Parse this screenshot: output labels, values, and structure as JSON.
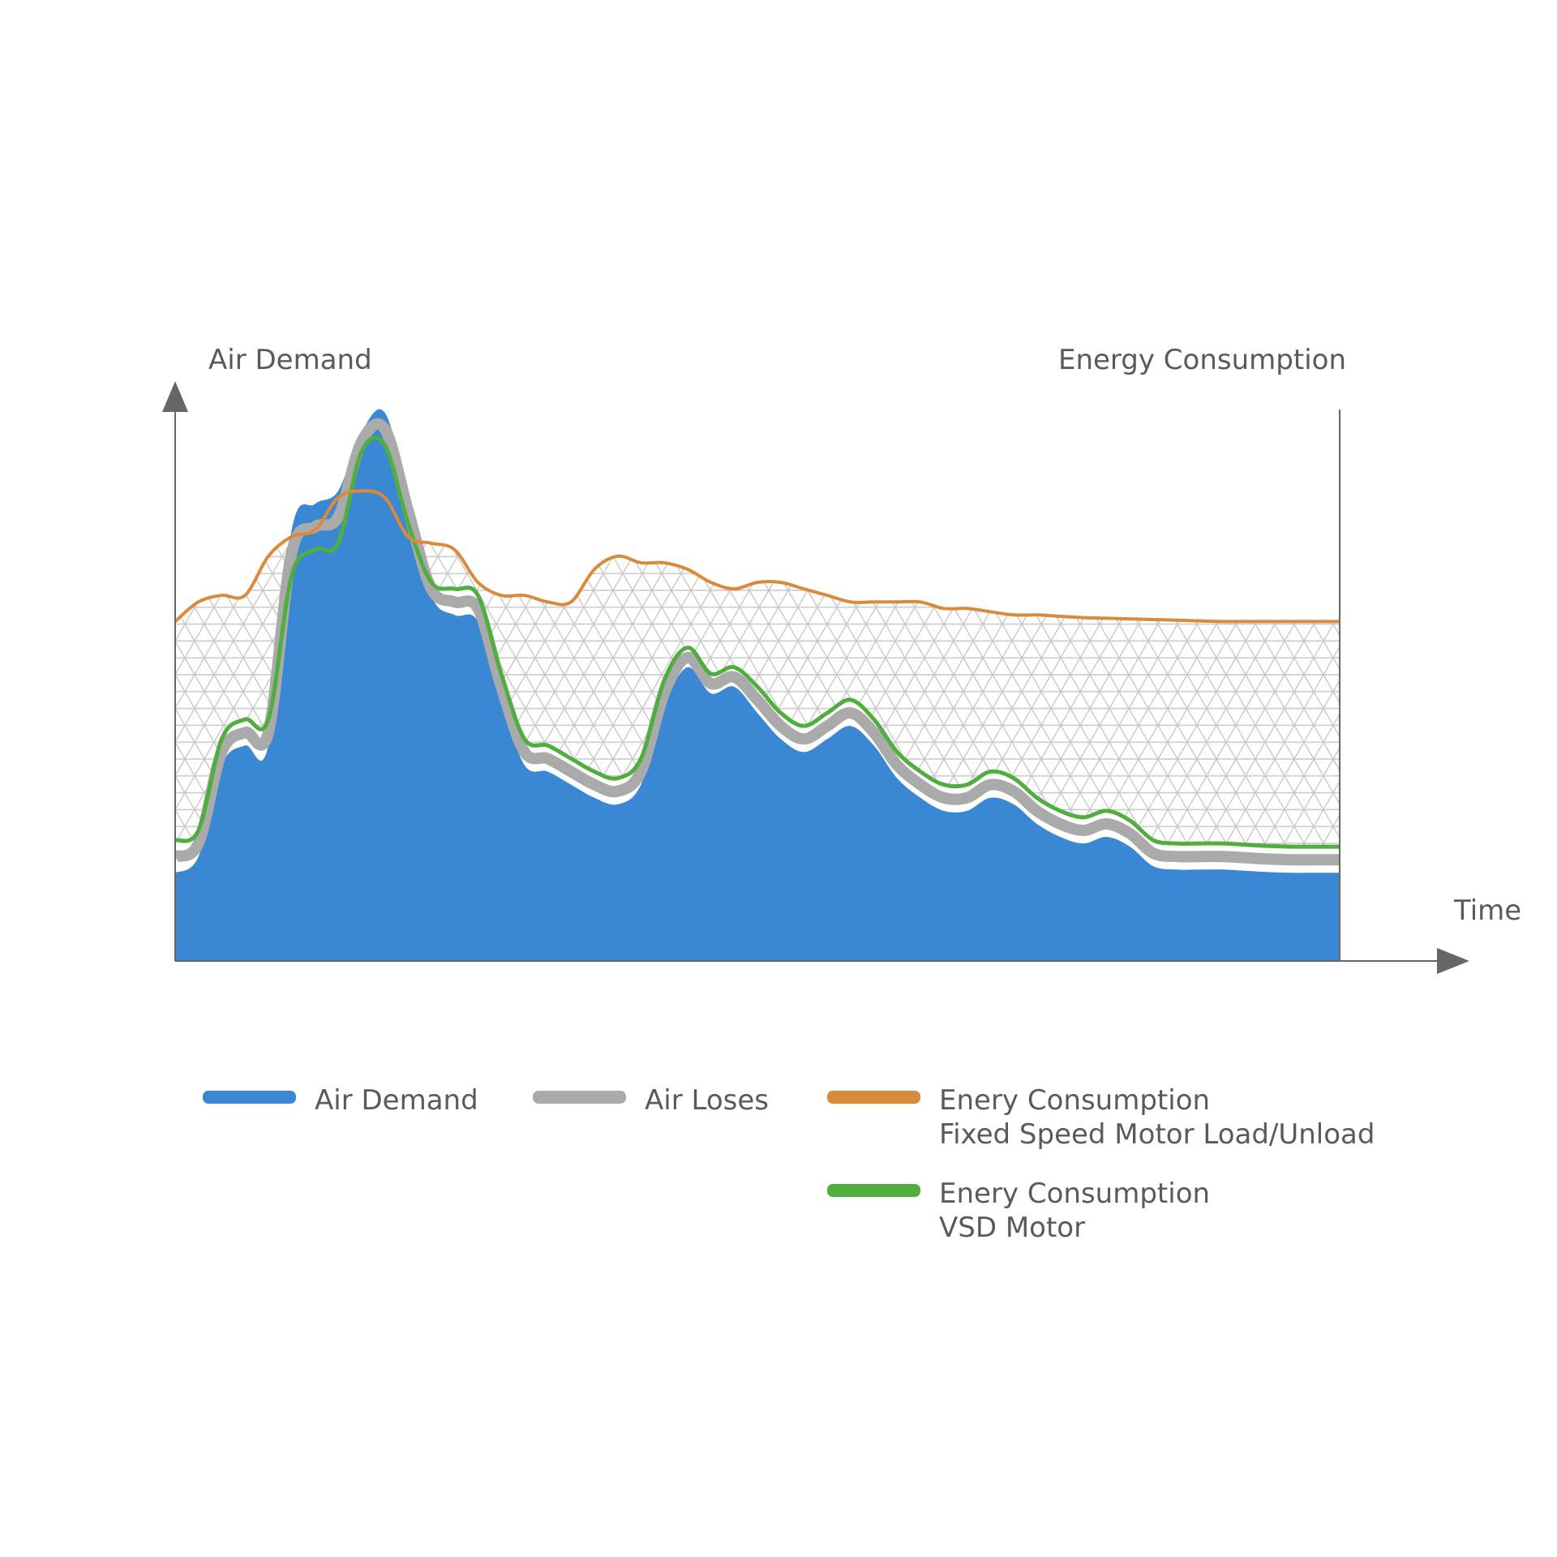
{
  "chart_data": {
    "type": "area",
    "y_left_label": "Air Demand",
    "y_right_label": "Energy Consumption",
    "x_label": "Time",
    "x_range": [
      0,
      100
    ],
    "y_range": [
      0,
      100
    ],
    "grid": false,
    "series": [
      {
        "name": "Air Demand",
        "kind": "filled-area",
        "color": "#3a88d4",
        "x": [
          0,
          2,
          4,
          6,
          8,
          10,
          12,
          14,
          16,
          18,
          20,
          22,
          24,
          26,
          28,
          30,
          32,
          34,
          36,
          38,
          40,
          42,
          44,
          46,
          48,
          50,
          52,
          54,
          56,
          58,
          60,
          62,
          64,
          66,
          68,
          70,
          72,
          74,
          76,
          78,
          80,
          82,
          84,
          86,
          88,
          90,
          92,
          94,
          96,
          98,
          100
        ],
        "y": [
          13.5,
          16,
          30,
          33,
          33,
          66,
          70,
          72,
          81,
          84,
          71,
          56,
          53,
          52,
          40,
          30,
          29,
          27,
          25,
          24,
          27,
          39,
          45,
          41,
          42,
          38,
          34,
          32,
          34,
          36,
          33,
          28,
          25,
          23,
          23,
          25,
          24,
          21,
          19,
          18,
          19,
          17.5,
          14.5,
          14,
          14,
          14,
          13.8,
          13.6,
          13.5,
          13.5,
          13.5
        ]
      },
      {
        "name": "Air Loses",
        "kind": "band",
        "color": "#aaaaaa"
      },
      {
        "name": "Enery Consumption\nFixed Speed Motor Load/Unload",
        "kind": "line",
        "color": "#d98a3a",
        "x": [
          0,
          2,
          4,
          6,
          8,
          10,
          12,
          14,
          16,
          18,
          20,
          22,
          24,
          26,
          28,
          30,
          32,
          34,
          36,
          38,
          40,
          42,
          44,
          46,
          48,
          50,
          52,
          54,
          56,
          58,
          60,
          62,
          64,
          66,
          68,
          70,
          72,
          74,
          76,
          78,
          80,
          82,
          84,
          86,
          88,
          90,
          92,
          94,
          96,
          98,
          100
        ],
        "y": [
          52,
          55,
          56,
          56,
          62,
          65,
          66,
          71,
          72,
          71,
          65,
          64,
          63,
          58,
          56,
          56,
          55,
          55,
          60,
          62,
          61,
          61,
          60,
          58,
          57,
          58,
          58,
          57,
          56,
          55,
          55,
          55,
          55,
          54,
          54,
          53.5,
          53,
          53,
          52.8,
          52.6,
          52.5,
          52.4,
          52.3,
          52.2,
          52.1,
          52,
          52,
          52,
          52,
          52,
          52
        ]
      },
      {
        "name": "Enery Consumption\nVSD Motor",
        "kind": "line",
        "color": "#4fae3e",
        "x": [
          0,
          2,
          4,
          6,
          8,
          10,
          12,
          14,
          16,
          18,
          20,
          22,
          24,
          26,
          28,
          30,
          32,
          34,
          36,
          38,
          40,
          42,
          44,
          46,
          48,
          50,
          52,
          54,
          56,
          58,
          60,
          62,
          64,
          66,
          68,
          70,
          72,
          74,
          76,
          78,
          80,
          82,
          84,
          86,
          88,
          90,
          92,
          94,
          96,
          98,
          100
        ],
        "y": [
          18.5,
          20,
          34,
          37,
          37,
          59,
          63,
          64,
          78,
          79,
          67,
          58,
          57,
          56,
          44,
          34,
          33,
          31,
          29,
          28,
          31,
          43,
          48,
          44,
          45,
          42,
          38,
          36,
          38,
          40,
          37,
          32,
          29,
          27,
          27,
          29,
          28,
          25,
          23,
          22,
          23,
          21.5,
          18.5,
          18,
          18,
          18,
          17.8,
          17.6,
          17.5,
          17.5,
          17.5
        ]
      }
    ],
    "legend": {
      "placement": "bottom",
      "items": [
        {
          "label": "Air Demand",
          "color": "#3a88d4"
        },
        {
          "label": "Air Loses",
          "color": "#aaaaaa"
        },
        {
          "label": "Enery Consumption",
          "label2": "Fixed Speed Motor Load/Unload",
          "color": "#d98a3a"
        },
        {
          "label": "Enery Consumption",
          "label2": "VSD Motor",
          "color": "#4fae3e"
        }
      ]
    },
    "axis_color": "#666666",
    "hatch_color": "#c8c8c8"
  }
}
